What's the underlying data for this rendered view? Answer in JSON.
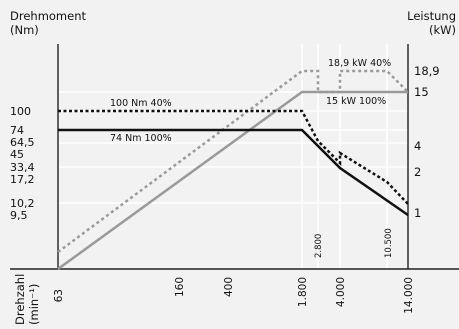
{
  "chart_data": {
    "type": "line",
    "title": "",
    "ylabel_left": [
      "Drehmoment",
      "(Nm)"
    ],
    "ylabel_right": [
      "Leistung",
      "(kW)"
    ],
    "xlabel": [
      "Drehzahl",
      "(min⁻¹)"
    ],
    "x_scale": "log",
    "x_range": [
      63,
      14000
    ],
    "x_ticks": [
      "63",
      "160",
      "400",
      "1.800",
      "4.000",
      "14.000"
    ],
    "x_ticks_minor": [
      "2.800",
      "10.500"
    ],
    "y_left_ticks": [
      "100",
      "74",
      "64,5",
      "45",
      "33,4",
      "17,2",
      "10,2",
      "9,5"
    ],
    "y_right_ticks": [
      "18,9",
      "15",
      "4",
      "2",
      "1"
    ],
    "grid": true,
    "annotations": [
      "100 Nm 40%",
      "74 Nm 100%",
      "18,9 kW 40%",
      "15 kW 100%"
    ],
    "series": [
      {
        "name": "100 Nm 40%",
        "axis": "left",
        "style": "dotted",
        "color": "#000000",
        "points": [
          [
            63,
            100
          ],
          [
            1800,
            100
          ],
          [
            2800,
            74
          ],
          [
            4000,
            45
          ],
          [
            4000,
            45
          ],
          [
            10500,
            33.4
          ],
          [
            14000,
            10.2
          ]
        ]
      },
      {
        "name": "74 Nm 100%",
        "axis": "left",
        "style": "solid",
        "color": "#000000",
        "points": [
          [
            63,
            74
          ],
          [
            1800,
            74
          ],
          [
            4000,
            33.4
          ],
          [
            14000,
            9.5
          ]
        ]
      },
      {
        "name": "18,9 kW 40%",
        "axis": "right",
        "style": "dotted",
        "color": "#999999",
        "points": [
          [
            63,
            0.6
          ],
          [
            1800,
            18.9
          ],
          [
            2800,
            18.9
          ],
          [
            2800,
            15
          ],
          [
            4000,
            15
          ],
          [
            4000,
            18.9
          ],
          [
            10500,
            18.9
          ],
          [
            14000,
            15
          ]
        ]
      },
      {
        "name": "15 kW 100%",
        "axis": "right",
        "style": "solid",
        "color": "#999999",
        "points": [
          [
            63,
            0.3
          ],
          [
            1800,
            15
          ],
          [
            14000,
            15
          ]
        ]
      }
    ]
  }
}
